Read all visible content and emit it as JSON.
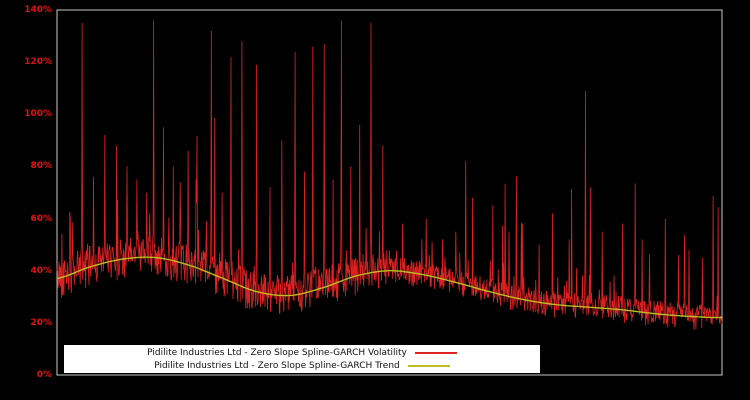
{
  "figure": {
    "background": "#000000",
    "frame_color": "#c8c8c8",
    "tick_color": "#dd1111"
  },
  "chart_data": {
    "type": "line",
    "title": "",
    "xlabel": "",
    "ylabel": "",
    "ylim": [
      0,
      140
    ],
    "grid": false,
    "legend_position": "bottom-center",
    "y_ticks": [
      "0%",
      "20%",
      "40%",
      "60%",
      "80%",
      "100%",
      "120%",
      "140%"
    ],
    "series": [
      {
        "name": "Pidilite Industries Ltd - Zero Slope Spline-GARCH Volatility",
        "color": "#de2222",
        "style": "noisy-daily"
      },
      {
        "name": "Pidilite Industries Ltd - Zero Slope Spline-GARCH Trend",
        "color": "#bcbd22",
        "style": "smooth"
      }
    ],
    "trend": {
      "x_step": 0.05,
      "y": [
        37,
        41.5,
        44.5,
        45,
        42,
        37,
        32,
        30.5,
        33.5,
        38,
        40,
        38.5,
        35.5,
        32,
        29,
        27,
        26,
        25,
        23.5,
        22.5,
        22
      ]
    },
    "volatility": {
      "n_points": 1350,
      "seed": 42,
      "baseline_note": "dense daily volatility mass around trend, lower envelope ~trend-8, decaying amplitude after midpoint",
      "spikes": [
        [
          0.02,
          60
        ],
        [
          0.038,
          135
        ],
        [
          0.055,
          76
        ],
        [
          0.072,
          92
        ],
        [
          0.09,
          88
        ],
        [
          0.105,
          80
        ],
        [
          0.12,
          75
        ],
        [
          0.135,
          70
        ],
        [
          0.145,
          136
        ],
        [
          0.16,
          95
        ],
        [
          0.175,
          80
        ],
        [
          0.185,
          74
        ],
        [
          0.197,
          86
        ],
        [
          0.21,
          66
        ],
        [
          0.232,
          132
        ],
        [
          0.248,
          70
        ],
        [
          0.262,
          122
        ],
        [
          0.278,
          128
        ],
        [
          0.3,
          119
        ],
        [
          0.32,
          72
        ],
        [
          0.338,
          90
        ],
        [
          0.358,
          124
        ],
        [
          0.372,
          78
        ],
        [
          0.385,
          126
        ],
        [
          0.402,
          127
        ],
        [
          0.415,
          75
        ],
        [
          0.428,
          136
        ],
        [
          0.442,
          80
        ],
        [
          0.455,
          96
        ],
        [
          0.472,
          135
        ],
        [
          0.49,
          88
        ],
        [
          0.52,
          58
        ],
        [
          0.555,
          60
        ],
        [
          0.58,
          52
        ],
        [
          0.6,
          55
        ],
        [
          0.625,
          68
        ],
        [
          0.655,
          65
        ],
        [
          0.68,
          55
        ],
        [
          0.7,
          58
        ],
        [
          0.725,
          50
        ],
        [
          0.745,
          62
        ],
        [
          0.77,
          52
        ],
        [
          0.795,
          109
        ],
        [
          0.82,
          55
        ],
        [
          0.85,
          58
        ],
        [
          0.88,
          52
        ],
        [
          0.915,
          60
        ],
        [
          0.935,
          46
        ],
        [
          0.95,
          48
        ],
        [
          0.97,
          45
        ]
      ]
    }
  }
}
